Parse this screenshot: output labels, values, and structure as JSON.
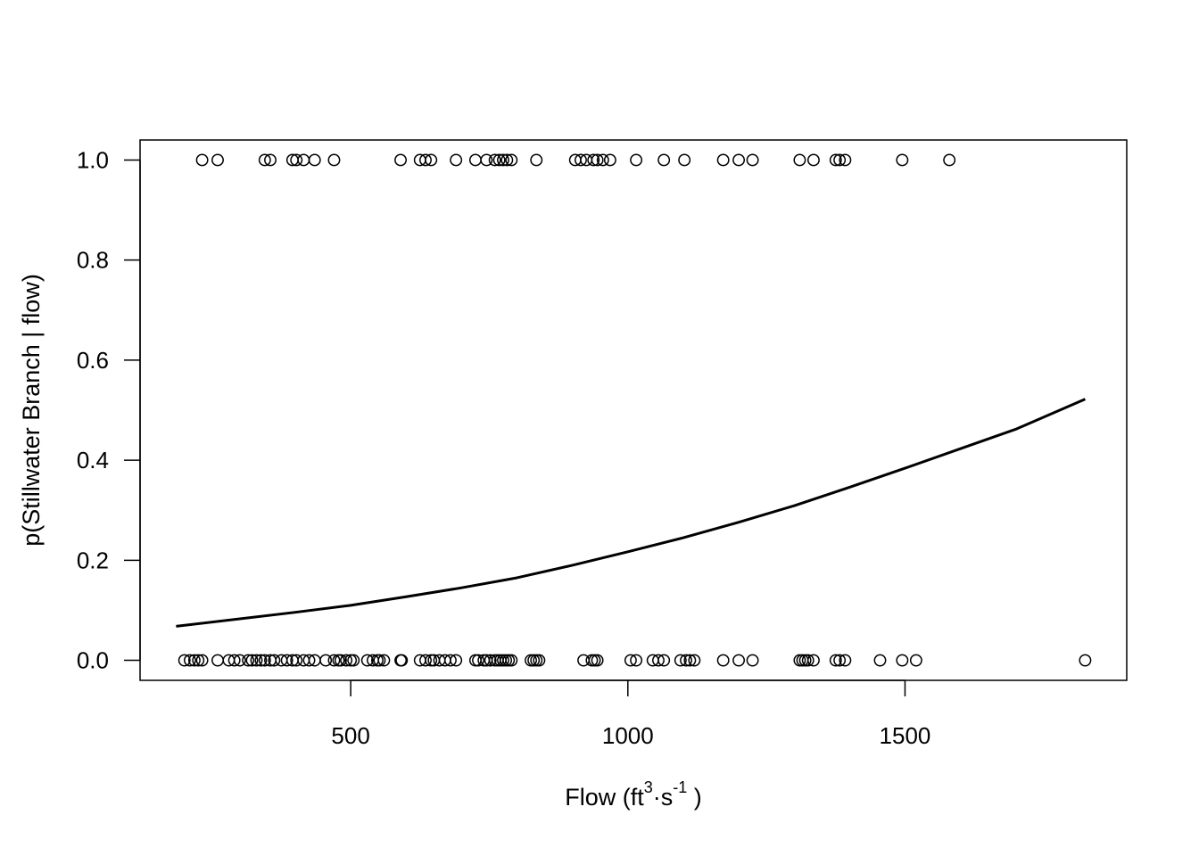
{
  "chart_data": {
    "type": "scatter",
    "title": "",
    "xlabel": {
      "prefix": "Flow (ft",
      "sup1": "3",
      "middle": "·s",
      "sup2": "-1",
      "suffix": " )"
    },
    "ylabel": "p(Stillwater Branch | flow)",
    "xlim": [
      120,
      1900
    ],
    "ylim": [
      -0.04,
      1.04
    ],
    "x_ticks": [
      500,
      1000,
      1500
    ],
    "x_tick_labels": [
      "500",
      "1000",
      "1500"
    ],
    "y_ticks": [
      0.0,
      0.2,
      0.4,
      0.6,
      0.8,
      1.0
    ],
    "y_tick_labels": [
      "0.0",
      "0.2",
      "0.4",
      "0.6",
      "0.8",
      "1.0"
    ],
    "grid": false,
    "legend": "none",
    "series": [
      {
        "marker": "open-circle",
        "color": "#000000",
        "y_value": 1,
        "x": [
          232,
          260,
          345,
          355,
          395,
          402,
          415,
          435,
          470,
          590,
          625,
          635,
          645,
          690,
          725,
          745,
          760,
          768,
          775,
          782,
          790,
          835,
          905,
          915,
          925,
          938,
          945,
          955,
          968,
          1015,
          1065,
          1102,
          1172,
          1200,
          1225,
          1310,
          1335,
          1375,
          1382,
          1392,
          1495,
          1580
        ]
      },
      {
        "marker": "open-circle",
        "color": "#000000",
        "y_value": 0,
        "x": [
          200,
          210,
          218,
          225,
          232,
          260,
          280,
          290,
          300,
          315,
          322,
          330,
          338,
          345,
          355,
          362,
          375,
          385,
          395,
          402,
          415,
          425,
          435,
          455,
          470,
          478,
          482,
          492,
          500,
          505,
          530,
          540,
          548,
          552,
          560,
          590,
          592,
          625,
          635,
          645,
          650,
          660,
          670,
          680,
          690,
          725,
          730,
          740,
          745,
          752,
          760,
          765,
          770,
          775,
          780,
          785,
          790,
          825,
          830,
          835,
          840,
          920,
          935,
          940,
          945,
          1005,
          1015,
          1045,
          1055,
          1065,
          1095,
          1105,
          1112,
          1120,
          1172,
          1200,
          1225,
          1310,
          1315,
          1320,
          1325,
          1335,
          1375,
          1382,
          1392,
          1455,
          1495,
          1520,
          1825
        ]
      }
    ],
    "fit_line": {
      "type": "line",
      "style": "logistic-fit",
      "color": "#000000",
      "x": [
        185,
        300,
        400,
        500,
        600,
        700,
        800,
        900,
        1000,
        1100,
        1200,
        1300,
        1400,
        1500,
        1600,
        1700,
        1825
      ],
      "y": [
        0.068,
        0.083,
        0.096,
        0.11,
        0.127,
        0.145,
        0.165,
        0.19,
        0.217,
        0.245,
        0.276,
        0.309,
        0.346,
        0.384,
        0.423,
        0.462,
        0.522
      ]
    }
  }
}
